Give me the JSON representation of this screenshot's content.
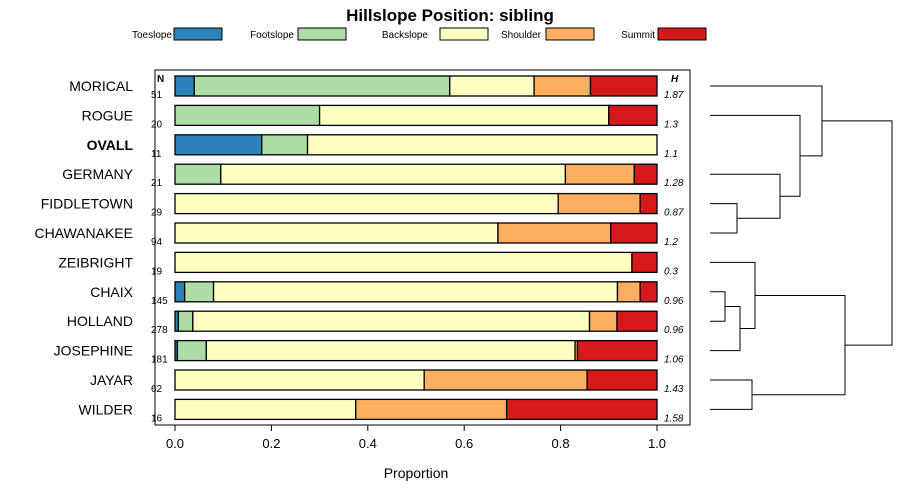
{
  "chart_data": {
    "type": "bar",
    "stacked": true,
    "orientation": "horizontal",
    "title": "Hillslope Position: sibling",
    "xlabel": "Proportion",
    "ylabel": "",
    "xlim": [
      0,
      1
    ],
    "xticks": [
      "0.0",
      "0.2",
      "0.4",
      "0.6",
      "0.8",
      "1.0"
    ],
    "n_header": "N",
    "h_header": "H",
    "legend": {
      "placement": "top",
      "entries": [
        {
          "name": "Toeslope",
          "color": "#2b83ba"
        },
        {
          "name": "Footslope",
          "color": "#abdda4"
        },
        {
          "name": "Backslope",
          "color": "#ffffbf"
        },
        {
          "name": "Shoulder",
          "color": "#fdae61"
        },
        {
          "name": "Summit",
          "color": "#d7191c"
        }
      ]
    },
    "categories": [
      "MORICAL",
      "ROGUE",
      "OVALL",
      "GERMANY",
      "FIDDLETOWN",
      "CHAWANAKEE",
      "ZEIBRIGHT",
      "CHAIX",
      "HOLLAND",
      "JOSEPHINE",
      "JAYAR",
      "WILDER"
    ],
    "highlighted_category": "OVALL",
    "n": [
      "51",
      "20",
      "11",
      "21",
      "29",
      "94",
      "19",
      "145",
      "278",
      "181",
      "62",
      "16"
    ],
    "h": [
      "1.87",
      "1.3",
      "1.1",
      "1.28",
      "0.87",
      "1.2",
      "0.3",
      "0.96",
      "0.96",
      "1.06",
      "1.43",
      "1.58"
    ],
    "series": [
      {
        "name": "Toeslope",
        "values": [
          0.04,
          0.0,
          0.18,
          0.0,
          0.0,
          0.0,
          0.0,
          0.02,
          0.007,
          0.005,
          0.0,
          0.0
        ]
      },
      {
        "name": "Footslope",
        "values": [
          0.53,
          0.3,
          0.095,
          0.095,
          0.0,
          0.0,
          0.0,
          0.06,
          0.03,
          0.06,
          0.0,
          0.0
        ]
      },
      {
        "name": "Backslope",
        "values": [
          0.175,
          0.6,
          0.725,
          0.715,
          0.795,
          0.67,
          0.948,
          0.838,
          0.823,
          0.765,
          0.517,
          0.375
        ]
      },
      {
        "name": "Shoulder",
        "values": [
          0.117,
          0.0,
          0.0,
          0.143,
          0.17,
          0.234,
          0.0,
          0.047,
          0.057,
          0.005,
          0.338,
          0.313
        ]
      },
      {
        "name": "Summit",
        "values": [
          0.138,
          0.1,
          0.0,
          0.047,
          0.035,
          0.096,
          0.052,
          0.035,
          0.083,
          0.165,
          0.145,
          0.312
        ]
      }
    ],
    "dendrogram": {
      "side": "right",
      "merges": [
        [
          "FIDDLETOWN",
          "CHAWANAKEE"
        ],
        [
          "GERMANY",
          "FIDDLETOWN+CHAWANAKEE"
        ],
        [
          "CHAIX",
          "HOLLAND"
        ],
        [
          "JAYAR",
          "WILDER"
        ],
        [
          "CHAIX+HOLLAND",
          "JOSEPHINE"
        ],
        [
          "ZEIBRIGHT",
          "CHAIX+HOLLAND+JOSEPHINE"
        ],
        [
          "ROGUE",
          "GERMANY+FIDDLETOWN+CHAWANAKEE"
        ],
        [
          "MORICAL",
          "ROGUE+GERMANY+FIDDLETOWN+CHAWANAKEE"
        ],
        [
          "ZEIBRIGHT+CHAIX+HOLLAND+JOSEPHINE",
          "JAYAR+WILDER"
        ],
        [
          "MORICAL+ROGUE+GERMANY+FIDDLETOWN+CHAWANAKEE",
          "ZEIBRIGHT+CHAIX+HOLLAND+JOSEPHINE+JAYAR+WILDER"
        ]
      ]
    }
  }
}
